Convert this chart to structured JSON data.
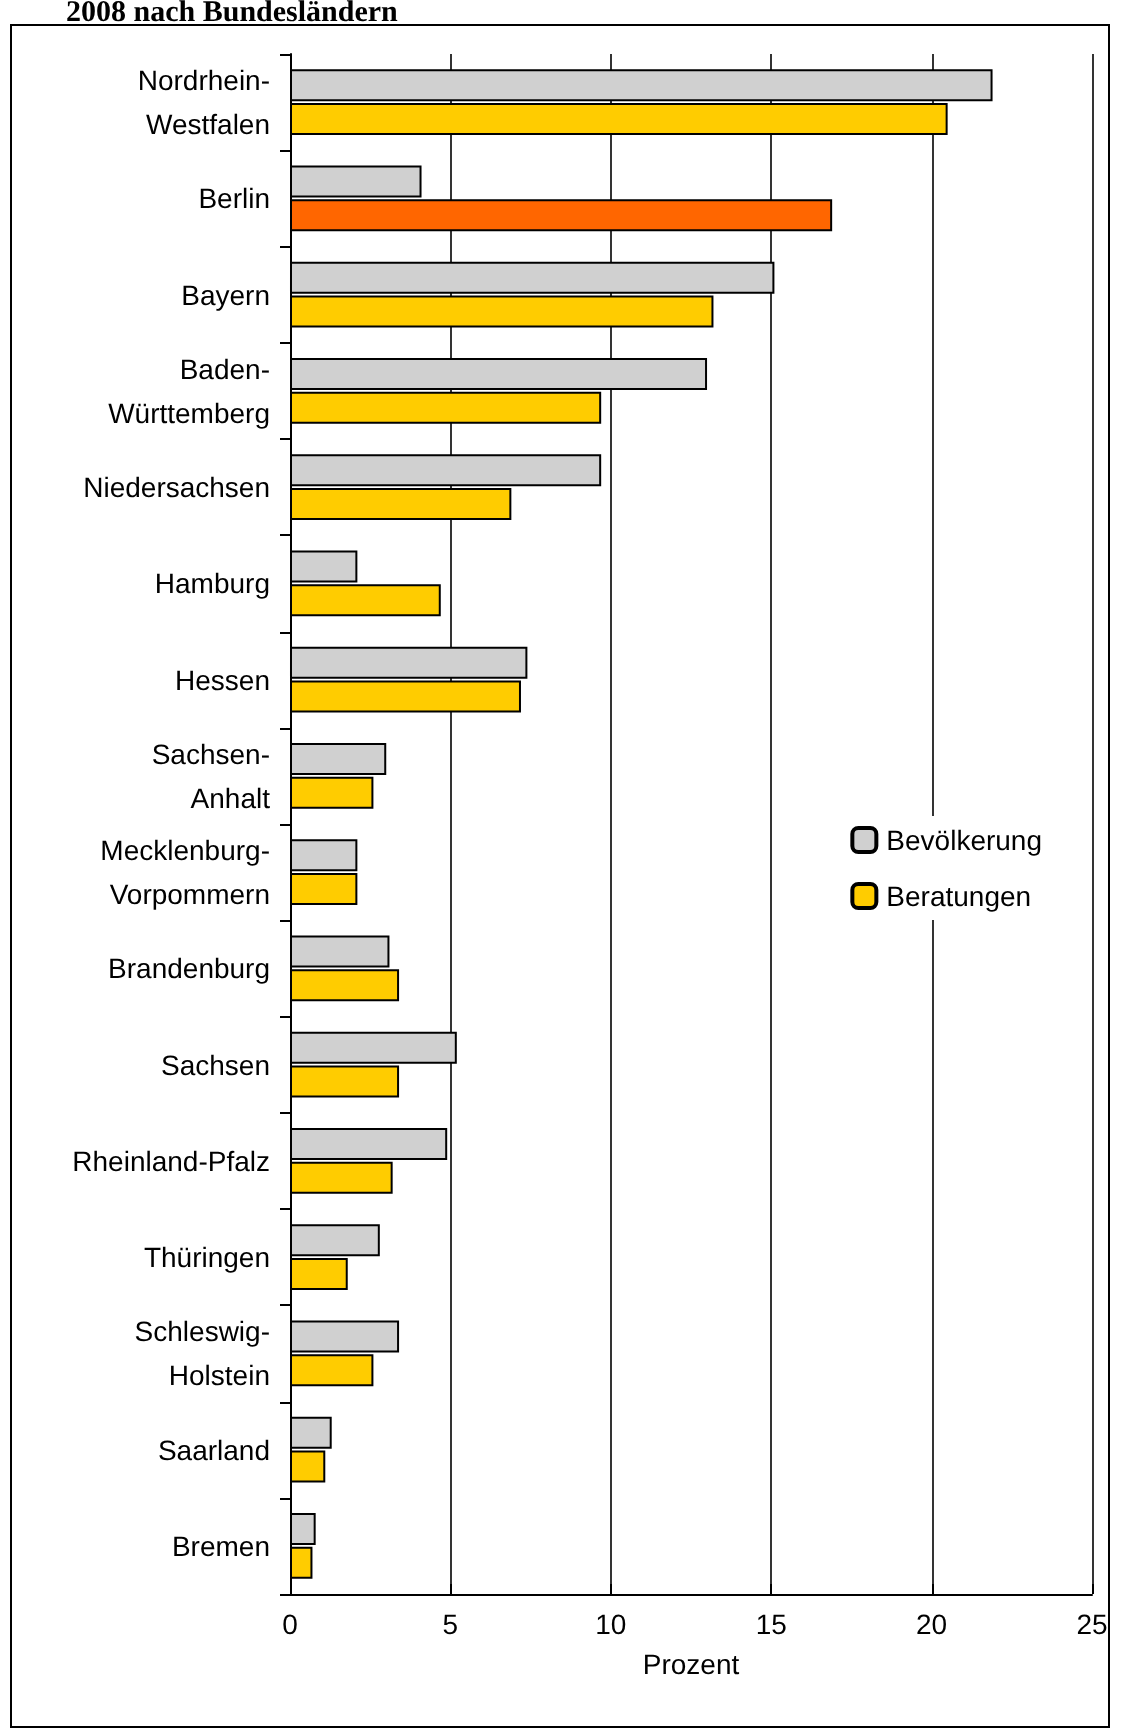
{
  "chart_data": {
    "type": "bar",
    "orientation": "horizontal",
    "title": "2008 nach Bundesländern",
    "xlabel": "Prozent",
    "categories": [
      "Nordrhein-\nWestfalen",
      "Berlin",
      "Bayern",
      "Baden-\nWürttemberg",
      "Niedersachsen",
      "Hamburg",
      "Hessen",
      "Sachsen-\nAnhalt",
      "Mecklenburg-\nVorpommern",
      "Brandenburg",
      "Sachsen",
      "Rheinland-Pfalz",
      "Thüringen",
      "Schleswig-\nHolstein",
      "Saarland",
      "Bremen"
    ],
    "series": [
      {
        "name": "Bevölkerung",
        "color": "#d0d0d0",
        "values": [
          21.9,
          4.1,
          15.1,
          13.0,
          9.7,
          2.1,
          7.4,
          3.0,
          2.1,
          3.1,
          5.2,
          4.9,
          2.8,
          3.4,
          1.3,
          0.8
        ]
      },
      {
        "name": "Beratungen",
        "color": "#ffcc00",
        "colors": [
          "#ffcc00",
          "#ff6600",
          "#ffcc00",
          "#ffcc00",
          "#ffcc00",
          "#ffcc00",
          "#ffcc00",
          "#ffcc00",
          "#ffcc00",
          "#ffcc00",
          "#ffcc00",
          "#ffcc00",
          "#ffcc00",
          "#ffcc00",
          "#ffcc00",
          "#ffcc00"
        ],
        "values": [
          20.5,
          16.9,
          13.2,
          9.7,
          6.9,
          4.7,
          7.2,
          2.6,
          2.1,
          3.4,
          3.4,
          3.2,
          1.8,
          2.6,
          1.1,
          0.7
        ]
      }
    ],
    "xlim": [
      0,
      25
    ],
    "xticks": [
      0,
      5,
      10,
      15,
      20,
      25
    ],
    "grid": "x",
    "legend": "right"
  }
}
